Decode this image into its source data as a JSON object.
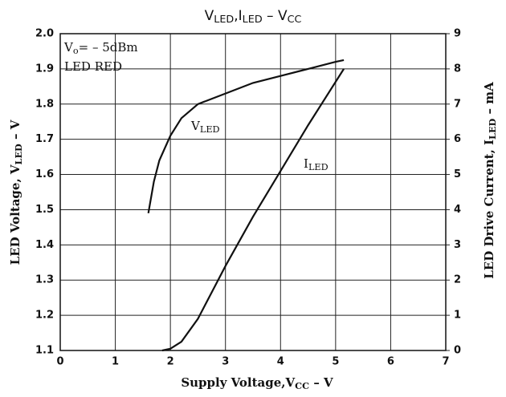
{
  "chart_data": {
    "type": "line",
    "title": [
      "V",
      "LED",
      ",I",
      "LED",
      "  –  V",
      "CC"
    ],
    "x_label": [
      "Supply Voltage,V",
      "CC",
      " – V"
    ],
    "y_label": [
      "LED Voltage, V",
      "LED",
      " – V"
    ],
    "y2_label": [
      "LED Drive Current, I",
      "LED",
      " – mA"
    ],
    "annotations": [
      [
        "V",
        "o",
        "= – 5dBm"
      ],
      [
        "LED  RED"
      ]
    ],
    "series": [
      {
        "name": [
          "V",
          "LED"
        ],
        "color": "#111111",
        "axis": "y",
        "x": [
          1.6,
          1.7,
          1.8,
          2.0,
          2.2,
          2.5,
          3.0,
          3.5,
          4.0,
          4.5,
          5.0,
          5.15
        ],
        "values": [
          1.49,
          1.58,
          1.64,
          1.71,
          1.76,
          1.8,
          1.83,
          1.86,
          1.88,
          1.9,
          1.92,
          1.925
        ]
      },
      {
        "name": [
          "I",
          "LED"
        ],
        "color": "#111111",
        "axis": "y2",
        "x": [
          1.85,
          2.0,
          2.2,
          2.5,
          2.8,
          3.0,
          3.5,
          4.0,
          4.5,
          5.15
        ],
        "values": [
          0,
          0.05,
          0.25,
          0.9,
          1.8,
          2.4,
          3.8,
          5.1,
          6.4,
          8.0
        ]
      }
    ],
    "xlim": [
      0,
      7
    ],
    "xticks": [
      0,
      1,
      2,
      3,
      4,
      5,
      6,
      7
    ],
    "ylim": [
      1.1,
      2.0
    ],
    "yticks": [
      1.1,
      1.2,
      1.3,
      1.4,
      1.5,
      1.6,
      1.7,
      1.8,
      1.9,
      {
        "value": 2,
        "label": "2.0"
      }
    ],
    "y2lim": [
      0,
      9
    ],
    "y2ticks": [
      0,
      1,
      2,
      3,
      4,
      5,
      6,
      7,
      8,
      9
    ],
    "grid": true
  }
}
